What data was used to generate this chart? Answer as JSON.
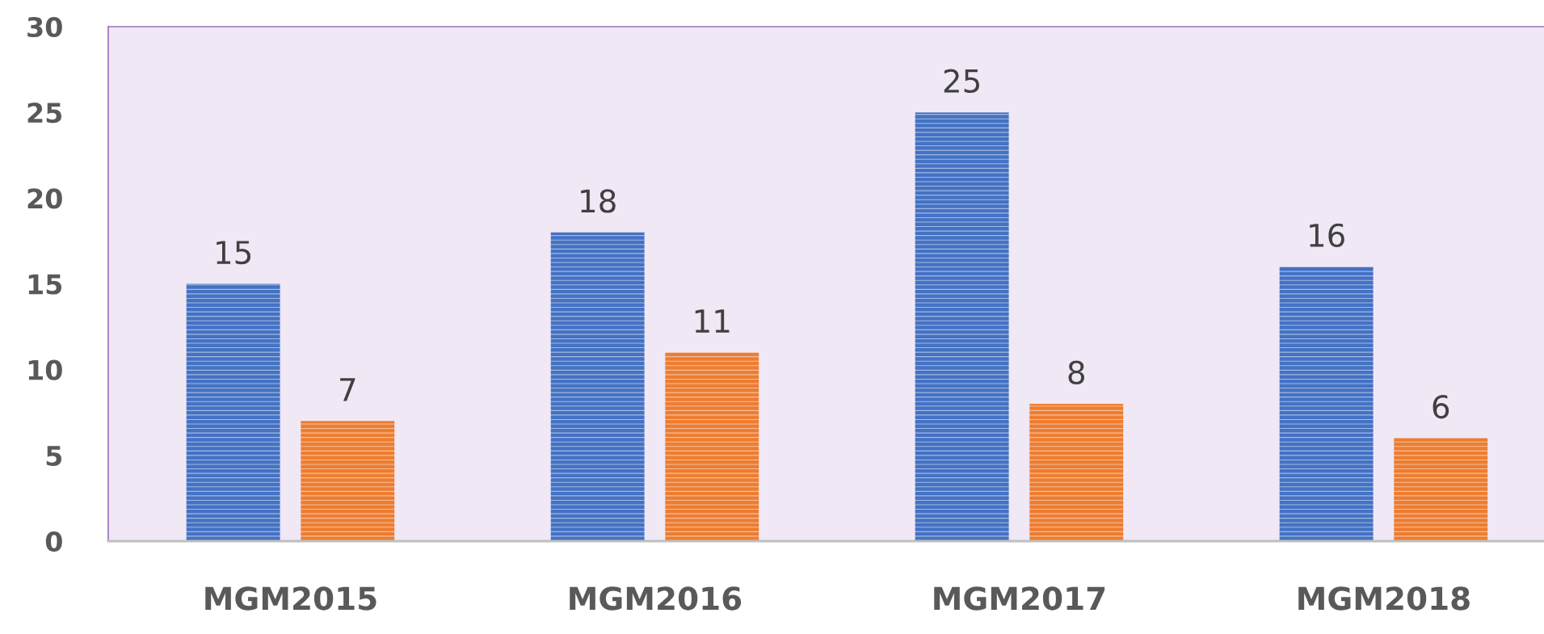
{
  "chart_data": {
    "type": "bar",
    "categories": [
      "MGM2015",
      "MGM2016",
      "MGM2017",
      "MGM2018"
    ],
    "series": [
      {
        "color": "#4472c4",
        "values": [
          15,
          18,
          25,
          16
        ]
      },
      {
        "color": "#ed7d31",
        "values": [
          7,
          11,
          8,
          6
        ]
      }
    ],
    "ylim": [
      0,
      30
    ],
    "yticks": [
      0,
      5,
      10,
      15,
      20,
      25,
      30
    ],
    "data_labels": true
  }
}
